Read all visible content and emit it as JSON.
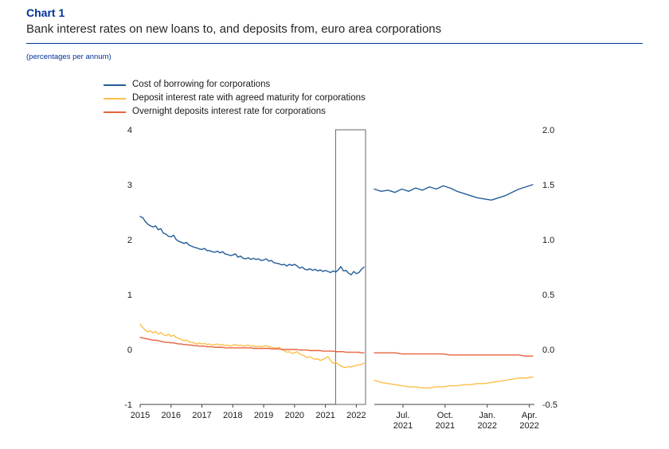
{
  "header": {
    "chart_label": "Chart 1",
    "title": "Bank interest rates on new loans to, and deposits from, euro area corporations",
    "note": "(percentages per annum)"
  },
  "colors": {
    "accent": "#003299",
    "borrowing": "#235c97",
    "deposit": "#fcbf49",
    "overnight": "#e8633e",
    "axis": "#404040",
    "highlight_box": "#666666"
  },
  "legend": [
    {
      "label": "Cost of borrowing for corporations",
      "series": "borrowing"
    },
    {
      "label": "Deposit interest rate with agreed maturity for corporations",
      "series": "deposit"
    },
    {
      "label": "Overnight deposits interest rate for corporations",
      "series": "overnight"
    }
  ],
  "chart_data": [
    {
      "type": "line",
      "panel": "main",
      "xlim": [
        2015.0,
        2022.3
      ],
      "ylim": [
        -1,
        4
      ],
      "x_span": [
        2015.0,
        2022.25
      ],
      "grid": false,
      "highlight_span": [
        2021.33,
        2022.3
      ],
      "x_ticks": [
        {
          "label": "2015",
          "v": 2015
        },
        {
          "label": "2016",
          "v": 2016
        },
        {
          "label": "2017",
          "v": 2017
        },
        {
          "label": "2018",
          "v": 2018
        },
        {
          "label": "2019",
          "v": 2019
        },
        {
          "label": "2020",
          "v": 2020
        },
        {
          "label": "2021",
          "v": 2021
        },
        {
          "label": "2022",
          "v": 2022
        }
      ],
      "y_ticks": [
        {
          "label": "4",
          "v": 4
        },
        {
          "label": "3",
          "v": 3
        },
        {
          "label": "2",
          "v": 2
        },
        {
          "label": "1",
          "v": 1
        },
        {
          "label": "0",
          "v": 0
        },
        {
          "label": "-1",
          "v": -1
        }
      ],
      "series": [
        {
          "name": "Cost of borrowing for corporations",
          "color_key": "borrowing",
          "values": [
            2.42,
            2.4,
            2.33,
            2.28,
            2.25,
            2.23,
            2.25,
            2.18,
            2.2,
            2.12,
            2.1,
            2.06,
            2.05,
            2.08,
            2.0,
            1.97,
            1.95,
            1.93,
            1.95,
            1.9,
            1.88,
            1.86,
            1.85,
            1.83,
            1.82,
            1.84,
            1.8,
            1.8,
            1.78,
            1.77,
            1.79,
            1.76,
            1.78,
            1.74,
            1.73,
            1.71,
            1.72,
            1.74,
            1.68,
            1.7,
            1.66,
            1.65,
            1.67,
            1.64,
            1.66,
            1.64,
            1.65,
            1.62,
            1.63,
            1.65,
            1.61,
            1.62,
            1.58,
            1.57,
            1.56,
            1.54,
            1.55,
            1.52,
            1.55,
            1.53,
            1.55,
            1.52,
            1.48,
            1.5,
            1.46,
            1.45,
            1.47,
            1.44,
            1.46,
            1.43,
            1.45,
            1.42,
            1.44,
            1.42,
            1.4,
            1.43,
            1.41,
            1.45,
            1.51,
            1.43,
            1.44,
            1.39,
            1.36,
            1.42,
            1.38,
            1.4,
            1.46,
            1.5
          ]
        },
        {
          "name": "Deposit interest rate with agreed maturity for corporations",
          "color_key": "deposit",
          "values": [
            0.46,
            0.4,
            0.35,
            0.32,
            0.34,
            0.3,
            0.33,
            0.28,
            0.31,
            0.27,
            0.25,
            0.28,
            0.24,
            0.26,
            0.22,
            0.2,
            0.18,
            0.16,
            0.17,
            0.14,
            0.13,
            0.12,
            0.1,
            0.12,
            0.1,
            0.11,
            0.09,
            0.1,
            0.08,
            0.09,
            0.1,
            0.08,
            0.09,
            0.07,
            0.08,
            0.06,
            0.08,
            0.09,
            0.07,
            0.08,
            0.06,
            0.07,
            0.08,
            0.06,
            0.07,
            0.05,
            0.06,
            0.05,
            0.06,
            0.07,
            0.05,
            0.04,
            0.03,
            0.02,
            0.04,
            0.0,
            -0.02,
            -0.05,
            -0.04,
            -0.07,
            -0.06,
            -0.04,
            -0.08,
            -0.1,
            -0.12,
            -0.15,
            -0.13,
            -0.16,
            -0.18,
            -0.17,
            -0.2,
            -0.18,
            -0.16,
            -0.13,
            -0.2,
            -0.25,
            -0.23,
            -0.27,
            -0.3,
            -0.32,
            -0.33,
            -0.31,
            -0.32,
            -0.3,
            -0.29,
            -0.28,
            -0.27,
            -0.25
          ]
        },
        {
          "name": "Overnight deposits interest rate for corporations",
          "color_key": "overnight",
          "values": [
            0.22,
            0.21,
            0.2,
            0.19,
            0.18,
            0.17,
            0.17,
            0.16,
            0.15,
            0.14,
            0.13,
            0.13,
            0.12,
            0.12,
            0.11,
            0.1,
            0.1,
            0.09,
            0.09,
            0.08,
            0.08,
            0.07,
            0.07,
            0.06,
            0.06,
            0.06,
            0.05,
            0.05,
            0.05,
            0.04,
            0.04,
            0.04,
            0.04,
            0.03,
            0.03,
            0.03,
            0.03,
            0.03,
            0.03,
            0.03,
            0.03,
            0.03,
            0.03,
            0.03,
            0.02,
            0.02,
            0.02,
            0.02,
            0.02,
            0.02,
            0.02,
            0.01,
            0.01,
            0.01,
            0.01,
            0.0,
            0.0,
            0.0,
            0.0,
            0.0,
            0.0,
            0.0,
            -0.01,
            -0.01,
            -0.01,
            -0.01,
            -0.02,
            -0.02,
            -0.02,
            -0.02,
            -0.02,
            -0.03,
            -0.03,
            -0.03,
            -0.03,
            -0.03,
            -0.04,
            -0.04,
            -0.04,
            -0.04,
            -0.05,
            -0.05,
            -0.05,
            -0.05,
            -0.05,
            -0.05,
            -0.06,
            -0.06
          ]
        }
      ]
    },
    {
      "type": "line",
      "panel": "zoom",
      "xlim": [
        2021.33,
        2022.28
      ],
      "ylim": [
        -0.5,
        2.0
      ],
      "x_span": [
        2021.33,
        2022.27
      ],
      "grid": false,
      "x_ticks": [
        {
          "label": "Jul.",
          "line2": "2021",
          "v": 2021.5
        },
        {
          "label": "Oct.",
          "line2": "2021",
          "v": 2021.75
        },
        {
          "label": "Jan.",
          "line2": "2022",
          "v": 2022.0
        },
        {
          "label": "Apr.",
          "line2": "2022",
          "v": 2022.25
        }
      ],
      "y_ticks": [
        {
          "label": "2.0",
          "v": 2.0
        },
        {
          "label": "1.5",
          "v": 1.5
        },
        {
          "label": "1.0",
          "v": 1.0
        },
        {
          "label": "0.5",
          "v": 0.5
        },
        {
          "label": "0.0",
          "v": 0.0
        },
        {
          "label": "-0.5",
          "v": -0.5
        }
      ],
      "series": [
        {
          "name": "Cost of borrowing for corporations",
          "color_key": "borrowing",
          "values": [
            1.46,
            1.44,
            1.45,
            1.43,
            1.46,
            1.44,
            1.47,
            1.45,
            1.48,
            1.46,
            1.49,
            1.47,
            1.44,
            1.42,
            1.4,
            1.38,
            1.37,
            1.36,
            1.38,
            1.4,
            1.43,
            1.46,
            1.48,
            1.5
          ]
        },
        {
          "name": "Deposit interest rate with agreed maturity for corporations",
          "color_key": "deposit",
          "values": [
            -0.28,
            -0.3,
            -0.31,
            -0.32,
            -0.33,
            -0.34,
            -0.34,
            -0.35,
            -0.35,
            -0.34,
            -0.34,
            -0.33,
            -0.33,
            -0.32,
            -0.32,
            -0.31,
            -0.31,
            -0.3,
            -0.29,
            -0.28,
            -0.27,
            -0.26,
            -0.26,
            -0.25
          ]
        },
        {
          "name": "Overnight deposits interest rate for corporations",
          "color_key": "overnight",
          "values": [
            -0.03,
            -0.03,
            -0.03,
            -0.03,
            -0.04,
            -0.04,
            -0.04,
            -0.04,
            -0.04,
            -0.04,
            -0.04,
            -0.05,
            -0.05,
            -0.05,
            -0.05,
            -0.05,
            -0.05,
            -0.05,
            -0.05,
            -0.05,
            -0.05,
            -0.05,
            -0.06,
            -0.06
          ]
        }
      ]
    }
  ]
}
